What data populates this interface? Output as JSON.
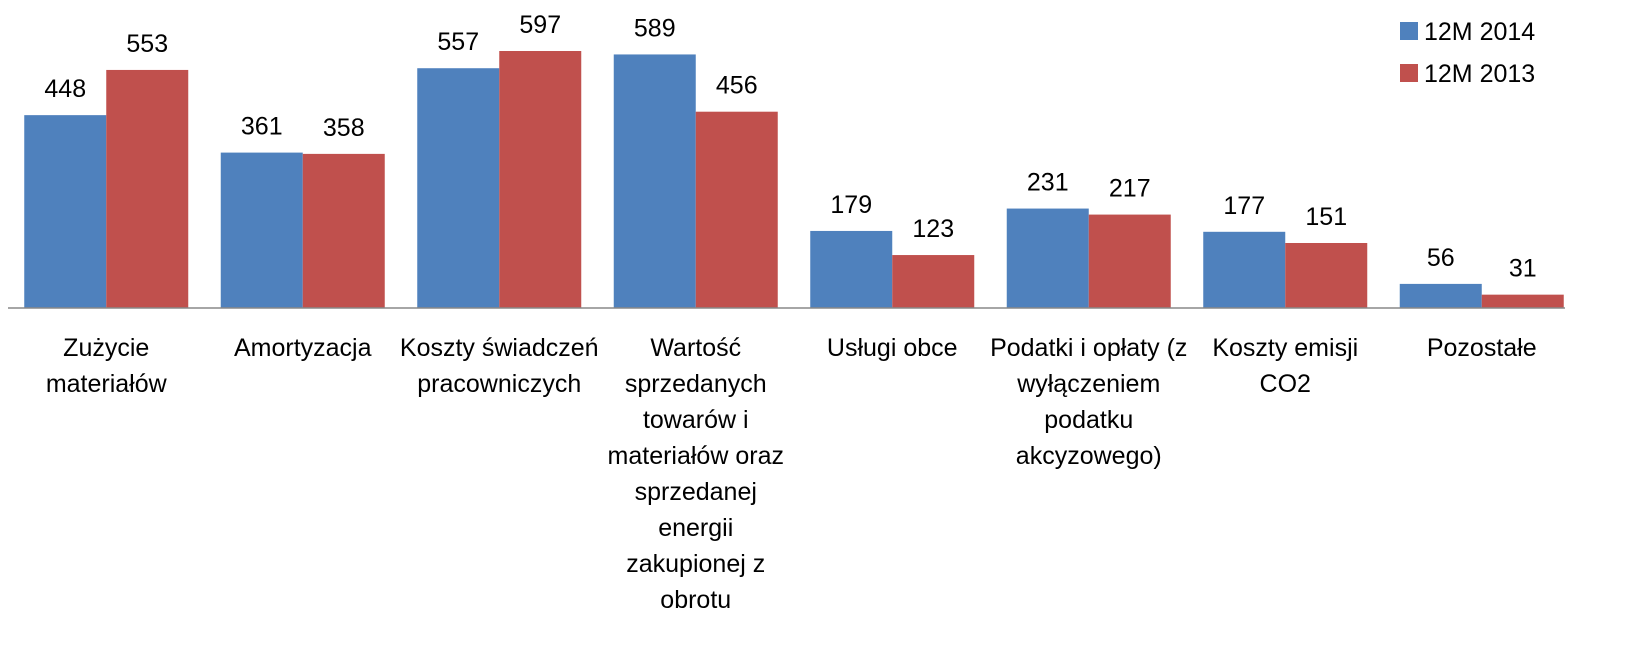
{
  "chart_data": {
    "type": "bar",
    "categories": [
      "Zużycie materiałów",
      "Amortyzacja",
      "Koszty świadczeń pracowniczych",
      "Wartość sprzedanych towarów i materiałów oraz sprzedanej energii zakupionej z obrotu",
      "Usługi obce",
      "Podatki i opłaty (z wyłączeniem podatku akcyzowego)",
      "Koszty emisji CO2",
      "Pozostałe"
    ],
    "series": [
      {
        "name": "12M 2014",
        "color": "#4f81bd",
        "values": [
          448,
          361,
          557,
          589,
          179,
          231,
          177,
          56
        ]
      },
      {
        "name": "12M 2013",
        "color": "#c0504d",
        "values": [
          553,
          358,
          597,
          456,
          123,
          217,
          151,
          31
        ]
      }
    ],
    "legend": "top-right"
  }
}
